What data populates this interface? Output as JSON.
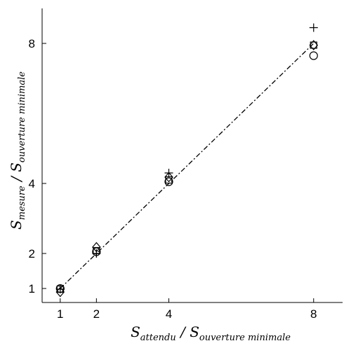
{
  "chart_data": {
    "type": "scatter",
    "x_label": {
      "main": "S",
      "sub_num": "attendu",
      "slash": " / ",
      "main2": "S",
      "sub_den": "ouverture minimale"
    },
    "y_label": {
      "main": "S",
      "sub_num": "mesure",
      "slash": " / ",
      "main2": "S",
      "sub_den": "ouverture minimale"
    },
    "xlim": [
      0.5,
      8.8
    ],
    "ylim": [
      0.6,
      9.0
    ],
    "x_ticks": [
      1,
      2,
      4,
      8
    ],
    "y_ticks": [
      1,
      2,
      4,
      8
    ],
    "x_tick_labels": [
      "1",
      "2",
      "4",
      "8"
    ],
    "y_tick_labels": [
      "1",
      "2",
      "4",
      "8"
    ],
    "grid": false,
    "reference_line": {
      "style": "dash-dot",
      "points": [
        [
          1,
          1
        ],
        [
          8,
          8
        ]
      ]
    },
    "series": [
      {
        "marker": "circle",
        "points": [
          [
            1,
            1.0
          ],
          [
            2,
            2.05
          ],
          [
            4,
            4.05
          ],
          [
            8,
            7.65
          ]
        ]
      },
      {
        "marker": "square",
        "points": [
          [
            1,
            0.98
          ],
          [
            2,
            2.08
          ],
          [
            4,
            4.1
          ],
          [
            8,
            7.95
          ]
        ]
      },
      {
        "marker": "diamond",
        "points": [
          [
            1,
            0.9
          ],
          [
            2,
            2.18
          ],
          [
            4,
            4.18
          ],
          [
            8,
            7.95
          ]
        ]
      },
      {
        "marker": "plus",
        "points": [
          [
            1,
            0.98
          ],
          [
            2,
            2.0
          ],
          [
            4,
            4.3
          ],
          [
            8,
            8.45
          ]
        ]
      }
    ]
  }
}
